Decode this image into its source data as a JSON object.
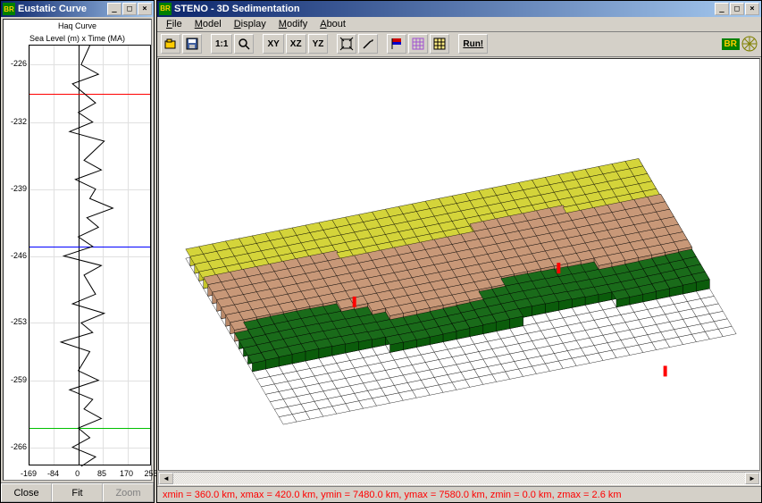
{
  "eustatic": {
    "title": "Eustatic Curve",
    "header1": "Haq Curve",
    "header2": "Sea Level (m) x Time (MA)",
    "y_ticks": [
      -226,
      -232,
      -239,
      -246,
      -253,
      -259,
      -266
    ],
    "x_ticks": [
      -169,
      -84,
      0,
      85,
      170,
      255
    ],
    "ylim": [
      -268,
      -224
    ],
    "xlim": [
      -169,
      255
    ],
    "ref_lines": [
      {
        "y": -229,
        "color": "#ff0000"
      },
      {
        "y": -245,
        "color": "#0000ff"
      },
      {
        "y": -264,
        "color": "#00c000"
      }
    ],
    "grid_color": "#e0e0e0",
    "axis_color": "#000000",
    "curve_color": "#000000",
    "curve_points": [
      [
        40,
        -224
      ],
      [
        10,
        -226
      ],
      [
        70,
        -227
      ],
      [
        -20,
        -228
      ],
      [
        60,
        -230
      ],
      [
        0,
        -231
      ],
      [
        50,
        -232
      ],
      [
        -30,
        -233
      ],
      [
        90,
        -234
      ],
      [
        20,
        -236
      ],
      [
        80,
        -237
      ],
      [
        -10,
        -238
      ],
      [
        60,
        -239
      ],
      [
        40,
        -240
      ],
      [
        120,
        -241
      ],
      [
        30,
        -242
      ],
      [
        70,
        -243
      ],
      [
        0,
        -244
      ],
      [
        50,
        -245
      ],
      [
        -50,
        -246
      ],
      [
        80,
        -247
      ],
      [
        20,
        -248
      ],
      [
        60,
        -250
      ],
      [
        -20,
        -251
      ],
      [
        90,
        -252
      ],
      [
        10,
        -253
      ],
      [
        50,
        -254
      ],
      [
        -60,
        -255
      ],
      [
        40,
        -256
      ],
      [
        0,
        -258
      ],
      [
        70,
        -259
      ],
      [
        -30,
        -260
      ],
      [
        50,
        -261
      ],
      [
        20,
        -262
      ],
      [
        80,
        -263
      ],
      [
        0,
        -264
      ],
      [
        40,
        -265
      ],
      [
        -20,
        -266
      ],
      [
        60,
        -267
      ],
      [
        10,
        -268
      ]
    ],
    "buttons": {
      "close": "Close",
      "fit": "Fit",
      "zoom": "Zoom"
    }
  },
  "main": {
    "title": "STENO - 3D Sedimentation",
    "menu": [
      "File",
      "Model",
      "Display",
      "Modify",
      "About"
    ],
    "toolbar": {
      "open": "open",
      "save": "save",
      "one_to_one": "1:1",
      "zoom": "zoom",
      "xy": "XY",
      "xz": "XZ",
      "yz": "YZ",
      "fit": "fit",
      "probe": "probe",
      "flag": "flag",
      "pattern": "pattern",
      "grid": "grid",
      "run": "Run!"
    },
    "status": "xmin = 360.0 km, xmax = 420.0 km, ymin = 7480.0 km, ymax = 7580.0 km, zmin = 0.0 km, zmax = 2.6 km",
    "status_color": "#ff0000",
    "sedimentation": {
      "colors": {
        "grid_line": "#000000",
        "layer_yellow": "#d4d43a",
        "layer_tan": "#c89878",
        "layer_green": "#1a6b1a",
        "marker": "#ff0000",
        "base": "#ffffff"
      },
      "markers": [
        {
          "x": 220,
          "y": 272
        },
        {
          "x": 450,
          "y": 234
        },
        {
          "x": 570,
          "y": 350
        }
      ]
    },
    "brand": "BR"
  }
}
